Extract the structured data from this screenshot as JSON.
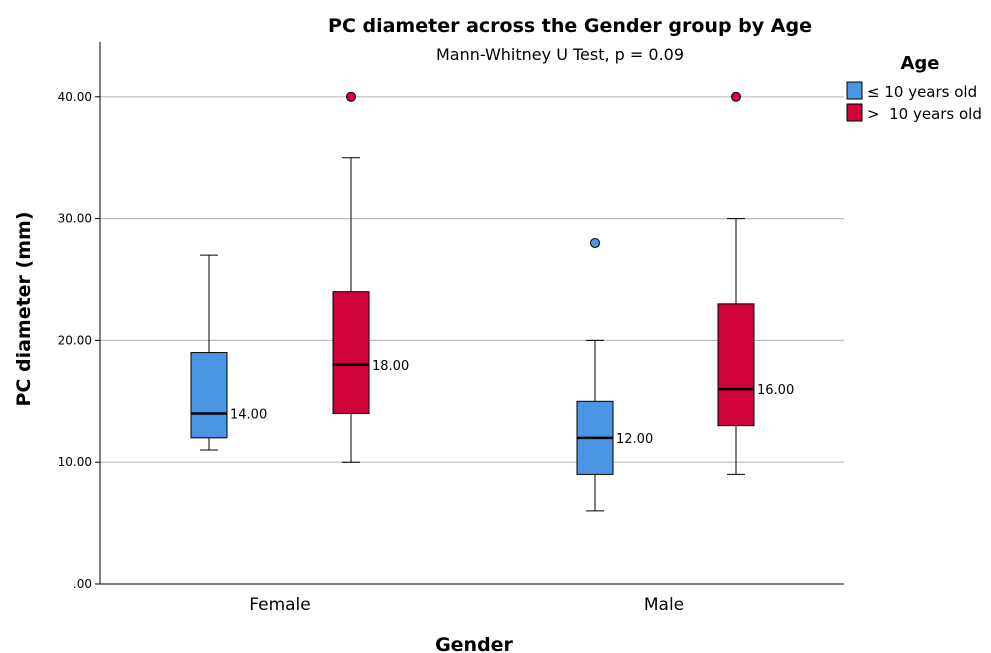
{
  "chart_data": {
    "type": "boxplot",
    "title": "PC diameter across the Gender group by Age",
    "subtitle": "Mann-Whitney U Test, p = 0.09",
    "xlabel": "Gender",
    "ylabel": "PC diameter (mm)",
    "ylim": [
      0,
      44
    ],
    "yticks": [
      0,
      10,
      20,
      30,
      40
    ],
    "ytick_labels": [
      ".00",
      "10.00",
      "20.00",
      "30.00",
      "40.00"
    ],
    "grid": "horizontal",
    "legend": {
      "title": "Age",
      "position": "top-right"
    },
    "categories": [
      "Female",
      "Male"
    ],
    "series": [
      {
        "name": "≤ 10 years old",
        "color": "#4A96E4",
        "boxes": [
          {
            "whisker_low": 11,
            "q1": 12,
            "median": 14,
            "q3": 19,
            "whisker_high": 27,
            "outliers": [],
            "median_label": "14.00"
          },
          {
            "whisker_low": 6,
            "q1": 9,
            "median": 12,
            "q3": 15,
            "whisker_high": 20,
            "outliers": [
              28
            ],
            "median_label": "12.00"
          }
        ]
      },
      {
        "name": ">  10 years old",
        "color": "#D0023A",
        "boxes": [
          {
            "whisker_low": 10,
            "q1": 14,
            "median": 18,
            "q3": 24,
            "whisker_high": 35,
            "outliers": [
              40
            ],
            "median_label": "18.00"
          },
          {
            "whisker_low": 9,
            "q1": 13,
            "median": 16,
            "q3": 23,
            "whisker_high": 30,
            "outliers": [
              40
            ],
            "median_label": "16.00"
          }
        ]
      }
    ]
  }
}
